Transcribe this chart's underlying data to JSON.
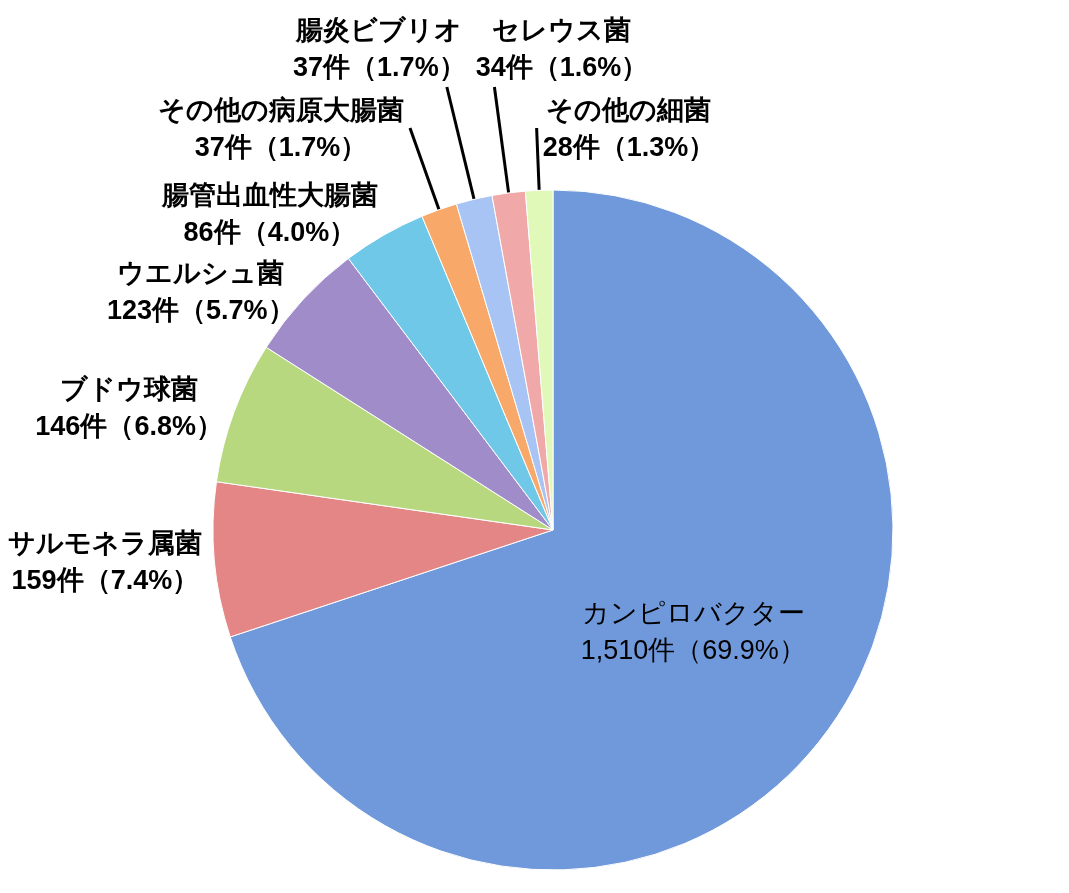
{
  "chart_data": {
    "type": "pie",
    "categories": [
      "カンピロバクター",
      "サルモネラ属菌",
      "ブドウ球菌",
      "ウエルシュ菌",
      "腸管出血性大腸菌",
      "その他の病原大腸菌",
      "腸炎ビブリオ",
      "セレウス菌",
      "その他の細菌"
    ],
    "values": [
      1510,
      159,
      146,
      123,
      86,
      37,
      37,
      34,
      28
    ],
    "colors": [
      "#7099dc",
      "#e58686",
      "#b8d880",
      "#a08cc8",
      "#70c8e8",
      "#f8a868",
      "#a8c4f4",
      "#f0a8a8",
      "#e0f8b8"
    ],
    "value_labels": [
      "1,510件（69.9%）",
      "159件（7.4%）",
      "146件（6.8%）",
      "123件（5.7%）",
      "86件（4.0%）",
      "37件（1.7%）",
      "37件（1.7%）",
      "34件（1.6%）",
      "28件（1.3%）"
    ]
  }
}
